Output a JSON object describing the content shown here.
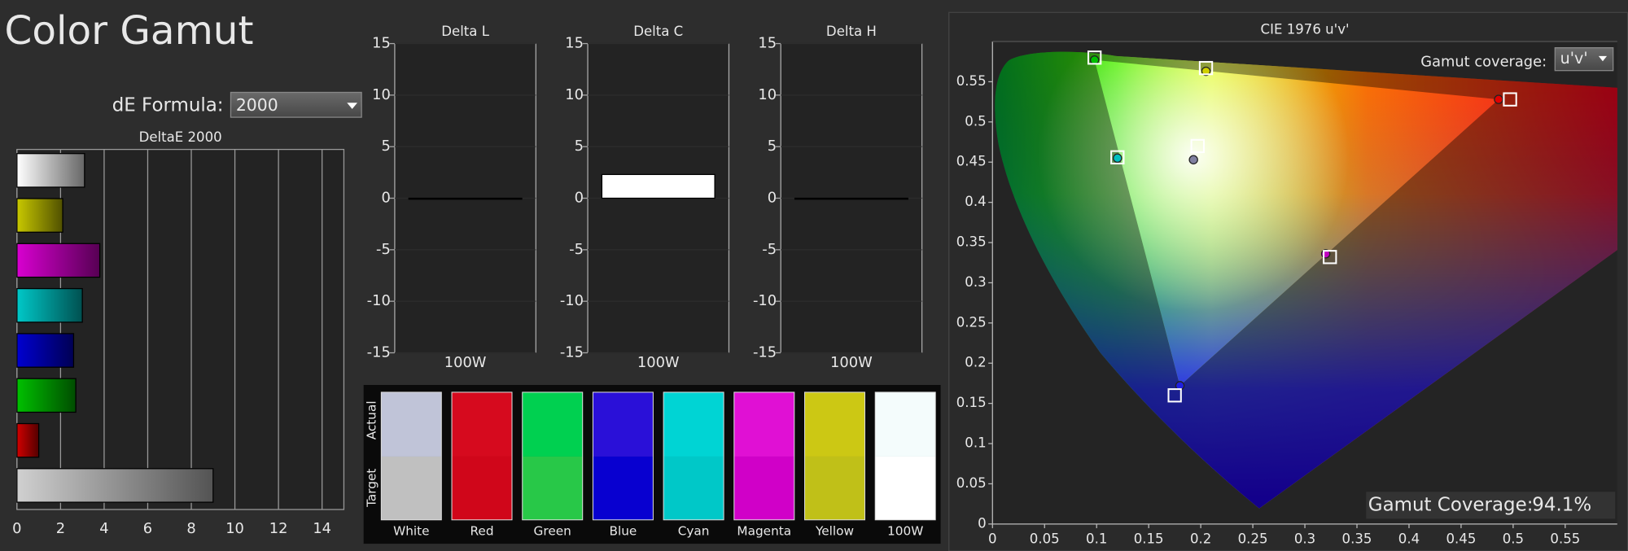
{
  "title": "Color Gamut",
  "de_formula": {
    "label": "dE Formula:",
    "value": "2000"
  },
  "chart_data": [
    {
      "type": "hbar",
      "title": "DeltaE 2000",
      "categories": [
        null,
        null,
        null,
        null,
        null,
        null,
        null,
        null
      ],
      "values": [
        3.1,
        2.1,
        3.8,
        3.0,
        2.6,
        2.7,
        1.0,
        9.0
      ],
      "colors": [
        "#ffffff",
        "#c8c800",
        "#d800d0",
        "#00c8c8",
        "#0000d0",
        "#00c000",
        "#d00000",
        "#d0d0d0"
      ],
      "xlim": [
        0,
        15
      ],
      "xticks": [
        0,
        2,
        4,
        6,
        8,
        10,
        12,
        14
      ],
      "grid": true
    },
    {
      "type": "bar",
      "title": "Delta L",
      "categories": [
        "100W"
      ],
      "values": [
        0
      ],
      "color": "#ffffff",
      "ylim": [
        -15,
        15
      ],
      "yticks": [
        15,
        10,
        5,
        0,
        -5,
        -10,
        -15
      ]
    },
    {
      "type": "bar",
      "title": "Delta C",
      "categories": [
        "100W"
      ],
      "values": [
        2.3
      ],
      "color": "#ffffff",
      "ylim": [
        -15,
        15
      ],
      "yticks": [
        15,
        10,
        5,
        0,
        -5,
        -10,
        -15
      ]
    },
    {
      "type": "bar",
      "title": "Delta H",
      "categories": [
        "100W"
      ],
      "values": [
        0
      ],
      "color": "#ffffff",
      "ylim": [
        -15,
        15
      ],
      "yticks": [
        15,
        10,
        5,
        0,
        -5,
        -10,
        -15
      ]
    },
    {
      "type": "scatter",
      "title": "CIE 1976 u'v'",
      "xlim": [
        0,
        0.6
      ],
      "ylim": [
        0,
        0.6
      ],
      "xticks": [
        0,
        0.05,
        0.1,
        0.15,
        0.2,
        0.25,
        0.3,
        0.35,
        0.4,
        0.45,
        0.5,
        0.55
      ],
      "yticks": [
        0,
        0.05,
        0.1,
        0.15,
        0.2,
        0.25,
        0.3,
        0.35,
        0.4,
        0.45,
        0.5,
        0.55
      ],
      "series": [
        {
          "marker": "square",
          "color": "#ffffff",
          "x": [
            0.098,
            0.205,
            0.497,
            0.197,
            0.12,
            0.324,
            0.175
          ],
          "values": [
            0.58,
            0.567,
            0.528,
            0.47,
            0.456,
            0.332,
            0.16
          ]
        },
        {
          "marker": "circle",
          "colors": [
            "#00c000",
            "#d0d000",
            "#e00000",
            "#8080a0",
            "#00c0c0",
            "#c000c0",
            "#2020e0"
          ],
          "x": [
            0.098,
            0.205,
            0.486,
            0.193,
            0.12,
            0.32,
            0.18
          ],
          "values": [
            0.577,
            0.563,
            0.528,
            0.453,
            0.455,
            0.336,
            0.172
          ]
        }
      ]
    }
  ],
  "swatches": {
    "row_labels": [
      "Actual",
      "Target"
    ],
    "items": [
      {
        "label": "White",
        "actual": "#c0c4d8",
        "target": "#c0c0c0"
      },
      {
        "label": "Red",
        "actual": "#d60a1e",
        "target": "#d0061a"
      },
      {
        "label": "Green",
        "actual": "#00d050",
        "target": "#28c848"
      },
      {
        "label": "Blue",
        "actual": "#2a10d8",
        "target": "#0800d0"
      },
      {
        "label": "Cyan",
        "actual": "#00d4d4",
        "target": "#00c8c8"
      },
      {
        "label": "Magenta",
        "actual": "#e010d4",
        "target": "#d000c8"
      },
      {
        "label": "Yellow",
        "actual": "#ccc814",
        "target": "#c0c018"
      },
      {
        "label": "100W",
        "actual": "#f4fcfc",
        "target": "#ffffff"
      }
    ]
  },
  "gamut_selector": {
    "label": "Gamut coverage:",
    "value": "u'v'"
  },
  "gamut_result": {
    "label": "Gamut Coverage:",
    "value": "94.1%"
  }
}
